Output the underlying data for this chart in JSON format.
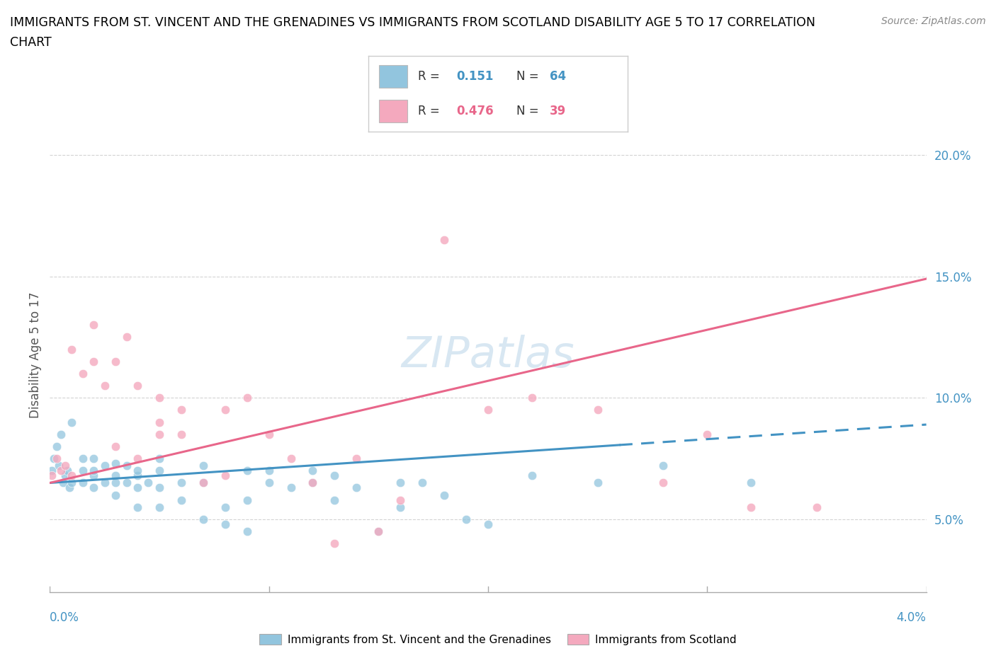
{
  "title_line1": "IMMIGRANTS FROM ST. VINCENT AND THE GRENADINES VS IMMIGRANTS FROM SCOTLAND DISABILITY AGE 5 TO 17 CORRELATION",
  "title_line2": "CHART",
  "source": "Source: ZipAtlas.com",
  "ylabel_label": "Disability Age 5 to 17",
  "legend_blue_r": "0.151",
  "legend_blue_n": "64",
  "legend_pink_r": "0.476",
  "legend_pink_n": "39",
  "blue_color": "#92c5de",
  "pink_color": "#f4a9be",
  "blue_line_color": "#4393c3",
  "pink_line_color": "#e8668a",
  "watermark": "ZIPatlas",
  "blue_scatter_x": [
    0.0002,
    0.0003,
    0.0004,
    0.0005,
    0.0006,
    0.0007,
    0.0008,
    0.0009,
    0.001,
    0.001,
    0.0015,
    0.0015,
    0.0015,
    0.002,
    0.002,
    0.002,
    0.002,
    0.0025,
    0.0025,
    0.003,
    0.003,
    0.003,
    0.003,
    0.0035,
    0.0035,
    0.004,
    0.004,
    0.004,
    0.004,
    0.0045,
    0.005,
    0.005,
    0.005,
    0.005,
    0.006,
    0.006,
    0.007,
    0.007,
    0.007,
    0.008,
    0.008,
    0.009,
    0.009,
    0.009,
    0.01,
    0.01,
    0.011,
    0.012,
    0.012,
    0.013,
    0.013,
    0.014,
    0.015,
    0.016,
    0.016,
    0.017,
    0.018,
    0.019,
    0.02,
    0.022,
    0.025,
    0.028,
    0.032,
    0.0001
  ],
  "blue_scatter_y": [
    0.075,
    0.08,
    0.072,
    0.085,
    0.065,
    0.068,
    0.07,
    0.063,
    0.065,
    0.09,
    0.07,
    0.065,
    0.075,
    0.075,
    0.068,
    0.063,
    0.07,
    0.072,
    0.065,
    0.073,
    0.068,
    0.065,
    0.06,
    0.072,
    0.065,
    0.063,
    0.068,
    0.055,
    0.07,
    0.065,
    0.07,
    0.075,
    0.063,
    0.055,
    0.065,
    0.058,
    0.065,
    0.05,
    0.072,
    0.048,
    0.055,
    0.045,
    0.07,
    0.058,
    0.065,
    0.07,
    0.063,
    0.065,
    0.07,
    0.068,
    0.058,
    0.063,
    0.045,
    0.065,
    0.055,
    0.065,
    0.06,
    0.05,
    0.048,
    0.068,
    0.065,
    0.072,
    0.065,
    0.07
  ],
  "pink_scatter_x": [
    0.0001,
    0.0003,
    0.0005,
    0.0007,
    0.001,
    0.001,
    0.0015,
    0.002,
    0.002,
    0.0025,
    0.003,
    0.003,
    0.0035,
    0.004,
    0.004,
    0.005,
    0.005,
    0.005,
    0.006,
    0.006,
    0.007,
    0.008,
    0.008,
    0.009,
    0.01,
    0.011,
    0.012,
    0.013,
    0.014,
    0.015,
    0.016,
    0.018,
    0.02,
    0.022,
    0.025,
    0.028,
    0.03,
    0.032,
    0.035
  ],
  "pink_scatter_y": [
    0.068,
    0.075,
    0.07,
    0.072,
    0.12,
    0.068,
    0.11,
    0.13,
    0.115,
    0.105,
    0.115,
    0.08,
    0.125,
    0.105,
    0.075,
    0.09,
    0.1,
    0.085,
    0.095,
    0.085,
    0.065,
    0.068,
    0.095,
    0.1,
    0.085,
    0.075,
    0.065,
    0.04,
    0.075,
    0.045,
    0.058,
    0.165,
    0.095,
    0.1,
    0.095,
    0.065,
    0.085,
    0.055,
    0.055
  ],
  "xlim": [
    0.0,
    0.04
  ],
  "ylim": [
    0.02,
    0.215
  ],
  "yticks": [
    0.05,
    0.1,
    0.15,
    0.2
  ],
  "ytick_labels": [
    "5.0%",
    "10.0%",
    "15.0%",
    "20.0%"
  ],
  "grid_color": "#c8c8c8",
  "bg_color": "#ffffff",
  "blue_trend_x_solid_end": 0.026,
  "blue_trend_x_end": 0.04,
  "pink_trend_x_end": 0.04,
  "blue_trend_intercept": 0.065,
  "blue_trend_slope": 0.6,
  "pink_trend_intercept": 0.065,
  "pink_trend_slope": 2.1
}
